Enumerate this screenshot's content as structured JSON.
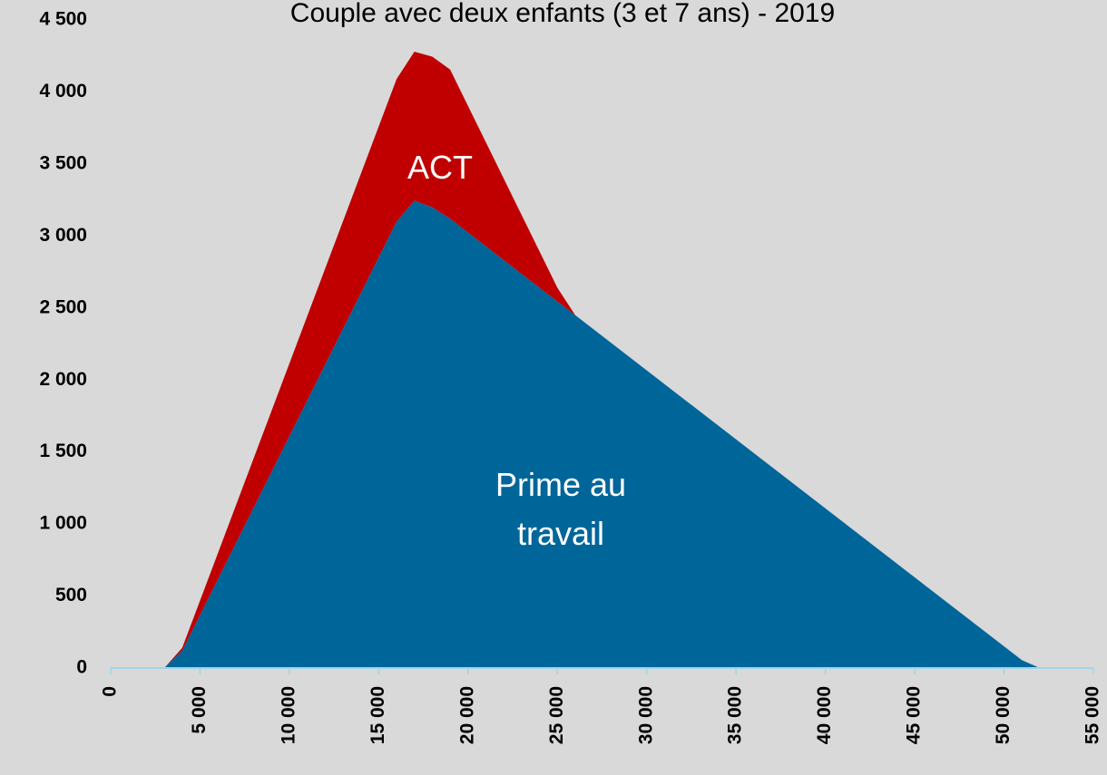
{
  "chart_data": {
    "type": "stacked_area",
    "title": "Couple avec deux enfants (3 et 7 ans) - 2019",
    "x": [
      0,
      3000,
      4000,
      16000,
      17000,
      18000,
      19000,
      25000,
      26000,
      51000,
      52000
    ],
    "series": [
      {
        "name": "Prime au travail",
        "color": "#00669a",
        "values": [
          0,
          0,
          120,
          3100,
          3245,
          3200,
          3120,
          2545,
          2450,
          55,
          0
        ]
      },
      {
        "name": "ACT",
        "color": "#c00000",
        "values": [
          0,
          0,
          20,
          990,
          1035,
          1045,
          1035,
          95,
          0,
          0,
          0
        ]
      }
    ],
    "xlim": [
      0,
      55000
    ],
    "xticks": [
      0,
      {
        "value": 5000,
        "label": "5 000"
      },
      {
        "value": 10000,
        "label": "10 000"
      },
      {
        "value": 15000,
        "label": "15 000"
      },
      {
        "value": 20000,
        "label": "20 000"
      },
      {
        "value": 25000,
        "label": "25 000"
      },
      {
        "value": 30000,
        "label": "30 000"
      },
      {
        "value": 35000,
        "label": "35 000"
      },
      {
        "value": 40000,
        "label": "40 000"
      },
      {
        "value": 45000,
        "label": "45 000"
      },
      {
        "value": 50000,
        "label": "50 000"
      },
      {
        "value": 55000,
        "label": "55 000"
      }
    ],
    "ylim": [
      0,
      4500
    ],
    "yticks": [
      0,
      500,
      {
        "value": 1000,
        "label": "1 000"
      },
      {
        "value": 1500,
        "label": "1 500"
      },
      {
        "value": 2000,
        "label": "2 000"
      },
      {
        "value": 2500,
        "label": "2 500"
      },
      {
        "value": 3000,
        "label": "3 000"
      },
      {
        "value": 3500,
        "label": "3 500"
      },
      {
        "value": 4000,
        "label": "4 000"
      },
      {
        "value": 4500,
        "label": "4 500"
      }
    ],
    "grid": false
  }
}
